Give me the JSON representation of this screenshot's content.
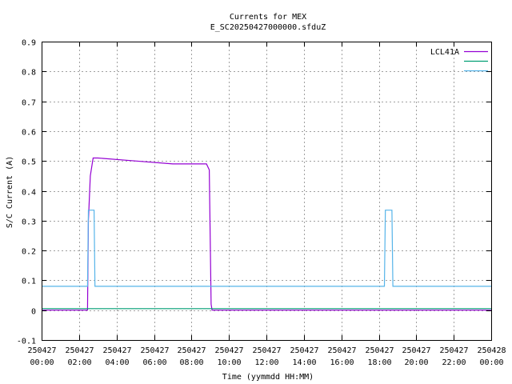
{
  "chart_data": {
    "type": "line",
    "title": "Currents for MEX",
    "subtitle": "E_SC20250427000000.sfduZ",
    "xlabel": "Time (yymmdd HH:MM)",
    "ylabel": "S/C Current (A)",
    "ylim": [
      -0.1,
      0.9
    ],
    "xlim_hours": [
      0,
      24
    ],
    "y_ticks": [
      "-0.1",
      "0",
      "0.1",
      "0.2",
      "0.3",
      "0.4",
      "0.5",
      "0.6",
      "0.7",
      "0.8",
      "0.9"
    ],
    "x_ticks": [
      {
        "date": "250427",
        "time": "00:00"
      },
      {
        "date": "250427",
        "time": "02:00"
      },
      {
        "date": "250427",
        "time": "04:00"
      },
      {
        "date": "250427",
        "time": "06:00"
      },
      {
        "date": "250427",
        "time": "08:00"
      },
      {
        "date": "250427",
        "time": "10:00"
      },
      {
        "date": "250427",
        "time": "12:00"
      },
      {
        "date": "250427",
        "time": "14:00"
      },
      {
        "date": "250427",
        "time": "16:00"
      },
      {
        "date": "250427",
        "time": "18:00"
      },
      {
        "date": "250427",
        "time": "20:00"
      },
      {
        "date": "250427",
        "time": "22:00"
      },
      {
        "date": "250428",
        "time": "00:00"
      }
    ],
    "grid": true,
    "legend_position": "top-right",
    "series": [
      {
        "name": "LCL41A",
        "color": "#9400d3",
        "points": [
          [
            0,
            0.0
          ],
          [
            2.45,
            0.0
          ],
          [
            2.5,
            0.3
          ],
          [
            2.6,
            0.45
          ],
          [
            2.75,
            0.51
          ],
          [
            3.0,
            0.51
          ],
          [
            5.0,
            0.5
          ],
          [
            7.0,
            0.49
          ],
          [
            8.8,
            0.49
          ],
          [
            8.95,
            0.47
          ],
          [
            9.05,
            0.02
          ],
          [
            9.1,
            0.0
          ],
          [
            24,
            0.0
          ]
        ]
      },
      {
        "name": "",
        "color": "#009e73",
        "points": [
          [
            0,
            0.005
          ],
          [
            24,
            0.005
          ]
        ]
      },
      {
        "name": "",
        "color": "#56b4e9",
        "points": [
          [
            0,
            0.08
          ],
          [
            2.45,
            0.08
          ],
          [
            2.5,
            0.335
          ],
          [
            2.8,
            0.335
          ],
          [
            2.85,
            0.08
          ],
          [
            18.3,
            0.08
          ],
          [
            18.35,
            0.335
          ],
          [
            18.7,
            0.335
          ],
          [
            18.75,
            0.08
          ],
          [
            24,
            0.08
          ]
        ]
      }
    ]
  },
  "colors": {
    "lcl41a": "#9400d3",
    "series2": "#009e73",
    "series3": "#56b4e9"
  }
}
